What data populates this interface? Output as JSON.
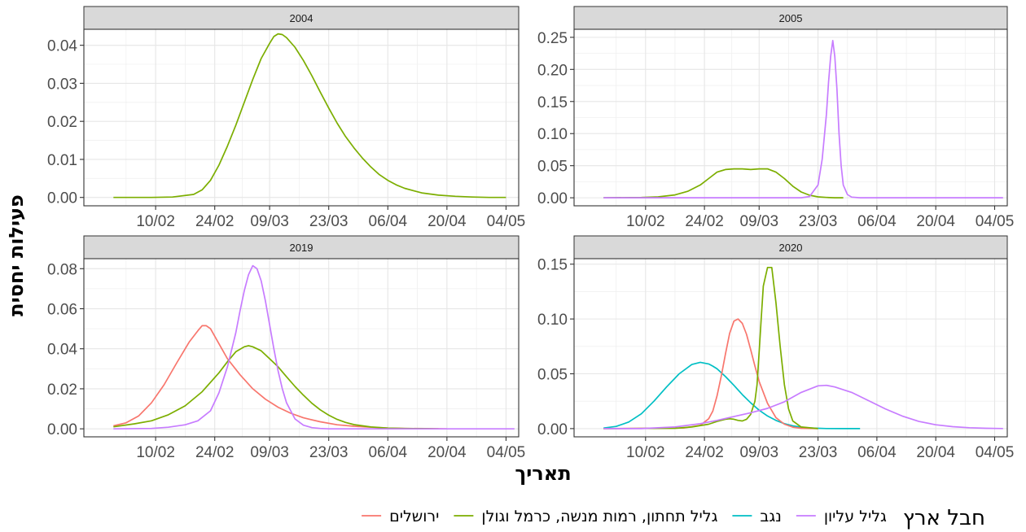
{
  "chart_data": {
    "type": "line",
    "facet_type": "wrap",
    "xlabel": "תאריך",
    "ylabel": "פעילות יחסית",
    "x_tick_labels": [
      "10/02",
      "24/02",
      "09/03",
      "23/03",
      "06/04",
      "20/04",
      "04/05"
    ],
    "x_tick_days": [
      41,
      55,
      68,
      82,
      96,
      110,
      124
    ],
    "xlim_days": [
      24,
      127
    ],
    "grid": true,
    "legend": {
      "title": "חבל ארץ",
      "position": "bottom",
      "entries": [
        {
          "key": "jerusalem",
          "label": "ירושלים",
          "color": "#F8766D"
        },
        {
          "key": "lower",
          "label": "גליל תחתון, רמות מנשה, כרמל וגולן",
          "color": "#7CAE00"
        },
        {
          "key": "negev",
          "label": "נגב",
          "color": "#00BFC4"
        },
        {
          "key": "upper",
          "label": "גליל עליון",
          "color": "#C77CFF"
        }
      ]
    },
    "panels": [
      {
        "title": "2004",
        "yticks": [
          0,
          0.01,
          0.02,
          0.03,
          0.04
        ],
        "ytick_labels": [
          "0.00",
          "0.01",
          "0.02",
          "0.03",
          "0.04"
        ],
        "ylim": [
          -0.0022,
          0.0442
        ],
        "series": [
          {
            "key": "lower",
            "x": [
              31,
              40,
              45,
              50,
              52,
              54,
              56,
              58,
              60,
              62,
              64,
              66,
              68,
              69,
              70,
              71,
              72,
              74,
              76,
              78,
              80,
              82,
              84,
              86,
              88,
              90,
              92,
              94,
              96,
              98,
              100,
              104,
              108,
              112,
              116,
              120,
              124
            ],
            "y": [
              0,
              0,
              0.0001,
              0.0008,
              0.002,
              0.0045,
              0.0085,
              0.0135,
              0.019,
              0.025,
              0.031,
              0.0365,
              0.0405,
              0.0423,
              0.043,
              0.0428,
              0.042,
              0.0395,
              0.036,
              0.032,
              0.0277,
              0.0235,
              0.0195,
              0.016,
              0.013,
              0.0103,
              0.008,
              0.006,
              0.0045,
              0.0033,
              0.0024,
              0.0012,
              0.0006,
              0.0003,
              0.0001,
              0,
              0
            ]
          }
        ]
      },
      {
        "title": "2005",
        "yticks": [
          0,
          0.05,
          0.1,
          0.15,
          0.2,
          0.25
        ],
        "ytick_labels": [
          "0.00",
          "0.05",
          "0.10",
          "0.15",
          "0.20",
          "0.25"
        ],
        "ylim": [
          -0.0125,
          0.2625
        ],
        "series": [
          {
            "key": "lower",
            "x": [
              31,
              40,
              44,
              48,
              51,
              54,
              56,
              58,
              60,
              62,
              64,
              66,
              68,
              70,
              72,
              74,
              76,
              78,
              80,
              82,
              84,
              86,
              88
            ],
            "y": [
              0,
              0.0005,
              0.0015,
              0.0045,
              0.01,
              0.02,
              0.03,
              0.04,
              0.044,
              0.045,
              0.045,
              0.044,
              0.045,
              0.045,
              0.04,
              0.03,
              0.018,
              0.009,
              0.004,
              0.0015,
              0.0005,
              0.0001,
              0
            ]
          },
          {
            "key": "upper",
            "x": [
              31,
              70,
              78,
              80,
              82,
              83,
              84,
              84.5,
              85,
              85.5,
              86,
              86.5,
              87,
              87.5,
              88,
              89,
              90,
              92,
              95,
              126
            ],
            "y": [
              0,
              0,
              0,
              0.002,
              0.02,
              0.06,
              0.13,
              0.18,
              0.22,
              0.245,
              0.22,
              0.17,
              0.1,
              0.05,
              0.02,
              0.005,
              0.001,
              0,
              0,
              0
            ]
          }
        ]
      },
      {
        "title": "2019",
        "yticks": [
          0,
          0.02,
          0.04,
          0.06,
          0.08
        ],
        "ytick_labels": [
          "0.00",
          "0.02",
          "0.04",
          "0.06",
          "0.08"
        ],
        "ylim": [
          -0.004,
          0.085
        ],
        "series": [
          {
            "key": "jerusalem",
            "x": [
              31,
              34,
              37,
              40,
              43,
              46,
              49,
              51,
              52,
              53,
              54,
              56,
              58,
              61,
              64,
              67,
              70,
              73,
              76,
              80,
              84,
              88,
              92,
              96,
              100,
              105,
              110
            ],
            "y": [
              0.0015,
              0.003,
              0.0065,
              0.013,
              0.022,
              0.033,
              0.0435,
              0.049,
              0.0515,
              0.0515,
              0.05,
              0.0425,
              0.035,
              0.027,
              0.02,
              0.0148,
              0.0108,
              0.0078,
              0.0055,
              0.0035,
              0.002,
              0.0013,
              0.0008,
              0.0004,
              0.0002,
              0.0001,
              0
            ]
          },
          {
            "key": "lower",
            "x": [
              31,
              36,
              40,
              44,
              48,
              52,
              56,
              58,
              60,
              62,
              63,
              64,
              66,
              68,
              70,
              72,
              74,
              76,
              78,
              80,
              82,
              84,
              86,
              88,
              92,
              96,
              100,
              104,
              108
            ],
            "y": [
              0.001,
              0.0025,
              0.004,
              0.007,
              0.0115,
              0.0185,
              0.028,
              0.0335,
              0.0385,
              0.041,
              0.0415,
              0.041,
              0.039,
              0.035,
              0.031,
              0.026,
              0.0212,
              0.0168,
              0.0128,
              0.0095,
              0.0068,
              0.0047,
              0.0032,
              0.0021,
              0.0009,
              0.0004,
              0.0002,
              0.0001,
              0
            ]
          },
          {
            "key": "upper",
            "x": [
              31,
              40,
              44,
              48,
              51,
              54,
              56,
              58,
              60,
              61,
              62,
              63,
              64,
              65,
              66,
              67,
              68,
              69,
              70,
              71,
              72,
              74,
              76,
              78,
              80,
              82,
              84,
              88,
              126
            ],
            "y": [
              0,
              0.0002,
              0.0008,
              0.002,
              0.004,
              0.009,
              0.018,
              0.031,
              0.048,
              0.059,
              0.069,
              0.077,
              0.0815,
              0.08,
              0.074,
              0.064,
              0.052,
              0.04,
              0.029,
              0.02,
              0.013,
              0.005,
              0.0018,
              0.0006,
              0.0002,
              0,
              0,
              0,
              0
            ]
          }
        ]
      },
      {
        "title": "2020",
        "yticks": [
          0,
          0.05,
          0.1,
          0.15
        ],
        "ytick_labels": [
          "0.00",
          "0.05",
          "0.10",
          "0.15"
        ],
        "ylim": [
          -0.0075,
          0.155
        ],
        "series": [
          {
            "key": "negev",
            "x": [
              31,
              34,
              37,
              40,
              43,
              46,
              49,
              52,
              54,
              56,
              57,
              58,
              60,
              62,
              64,
              66,
              68,
              70,
              72,
              74,
              76,
              78,
              80,
              84,
              88,
              92
            ],
            "y": [
              0.0005,
              0.002,
              0.006,
              0.0135,
              0.025,
              0.038,
              0.05,
              0.0585,
              0.0605,
              0.059,
              0.057,
              0.0545,
              0.0475,
              0.0395,
              0.031,
              0.0235,
              0.0168,
              0.0115,
              0.0075,
              0.0045,
              0.0025,
              0.0013,
              0.0006,
              0.0001,
              0,
              0
            ]
          },
          {
            "key": "jerusalem",
            "x": [
              31,
              50,
              54,
              56,
              57,
              58,
              59,
              60,
              61,
              62,
              63,
              64,
              65,
              66,
              67,
              68,
              70,
              72,
              74,
              76,
              78,
              82
            ],
            "y": [
              0,
              0.0005,
              0.003,
              0.009,
              0.016,
              0.03,
              0.048,
              0.068,
              0.087,
              0.098,
              0.1,
              0.096,
              0.086,
              0.072,
              0.057,
              0.043,
              0.023,
              0.01,
              0.004,
              0.0013,
              0.0003,
              0
            ]
          },
          {
            "key": "lower",
            "x": [
              31,
              48,
              52,
              56,
              58,
              60,
              61,
              62,
              63,
              64,
              65,
              66,
              67,
              67.5,
              68,
              68.5,
              69,
              70,
              71,
              72,
              73,
              74,
              75,
              76,
              78,
              82
            ],
            "y": [
              0,
              0.0003,
              0.0015,
              0.004,
              0.0065,
              0.0085,
              0.009,
              0.0085,
              0.0075,
              0.007,
              0.0085,
              0.013,
              0.025,
              0.04,
              0.07,
              0.1,
              0.13,
              0.147,
              0.147,
              0.115,
              0.075,
              0.04,
              0.018,
              0.007,
              0.0015,
              0
            ]
          },
          {
            "key": "upper",
            "x": [
              31,
              40,
              48,
              54,
              58,
              62,
              66,
              70,
              74,
              78,
              82,
              84,
              86,
              90,
              94,
              98,
              102,
              106,
              110,
              114,
              118,
              122,
              126
            ],
            "y": [
              0,
              0,
              0.0015,
              0.0045,
              0.0075,
              0.011,
              0.0145,
              0.0185,
              0.0245,
              0.033,
              0.039,
              0.0395,
              0.038,
              0.033,
              0.0255,
              0.018,
              0.0115,
              0.0065,
              0.0035,
              0.0018,
              0.0008,
              0.0003,
              0.0001
            ]
          }
        ]
      }
    ]
  }
}
